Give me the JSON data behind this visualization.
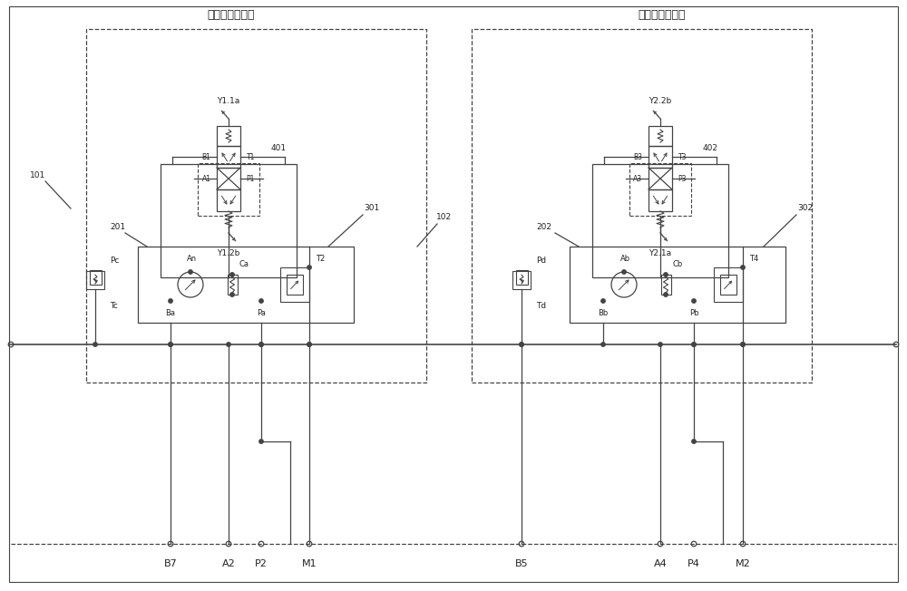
{
  "title_left": "左液压控制系统",
  "title_right": "右液压控制系统",
  "bg_color": "#ffffff",
  "lc": "#444444",
  "labels_bottom": [
    "B7",
    "A2",
    "P2",
    "M1",
    "B5",
    "A4",
    "P4",
    "M2"
  ],
  "left_valve_label_top": "Y1.1a",
  "left_valve_label_bot": "Y1.2b",
  "left_valve_num": "401",
  "right_valve_label_top": "Y2.2b",
  "right_valve_label_bot": "Y2.1a",
  "right_valve_num": "402",
  "left_ports": [
    "B1",
    "T1",
    "A1",
    "P1"
  ],
  "right_ports": [
    "B3",
    "T3",
    "A3",
    "P3"
  ],
  "left_lower_labels": [
    "An",
    "Ca",
    "T2",
    "Ba",
    "Pa",
    "Pc",
    "Tc"
  ],
  "right_lower_labels": [
    "Ab",
    "Cb",
    "T4",
    "Bb",
    "Pb",
    "Pd",
    "Td"
  ],
  "ref_nums_left": [
    "201",
    "101",
    "301",
    "102"
  ],
  "ref_nums_right": [
    "202",
    "302"
  ]
}
